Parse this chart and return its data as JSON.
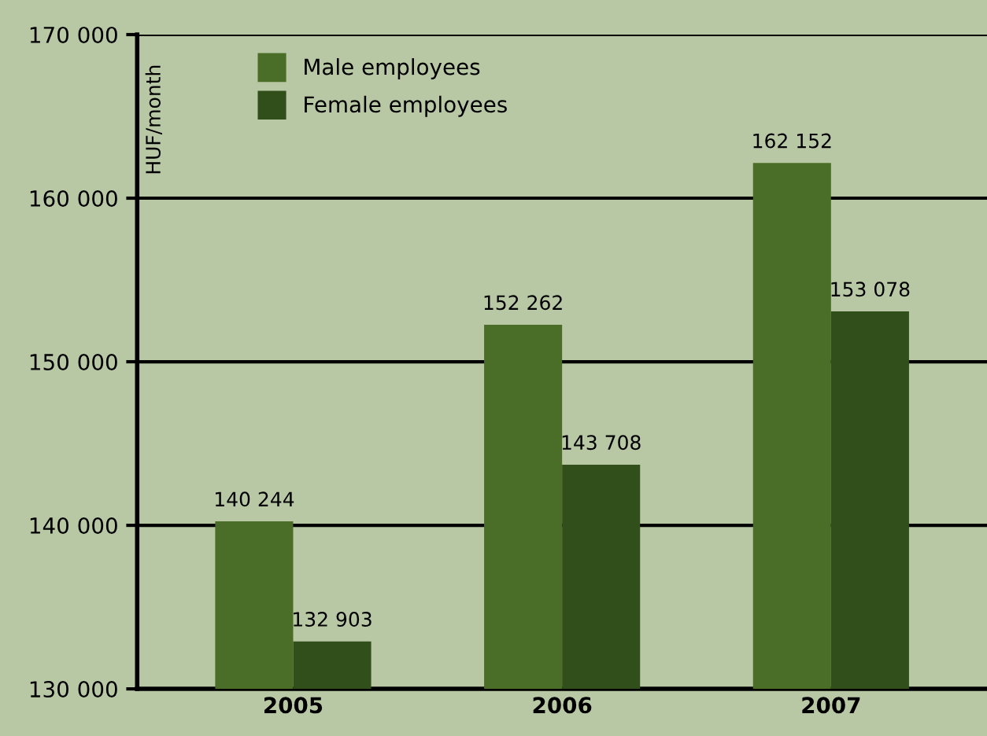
{
  "chart_data": {
    "type": "bar",
    "ylabel": "HUF/month",
    "categories": [
      "2005",
      "2006",
      "2007"
    ],
    "series": [
      {
        "name": "Male employees",
        "color": "#4a6e27",
        "values": [
          140244,
          152262,
          162152
        ],
        "value_labels": [
          "140 244",
          "152 262",
          "162 152"
        ]
      },
      {
        "name": "Female employees",
        "color": "#314f1a",
        "values": [
          132903,
          143708,
          153078
        ],
        "value_labels": [
          "132 903",
          "143 708",
          "153 078"
        ]
      }
    ],
    "ylim": [
      130000,
      170000
    ],
    "yticks": [
      {
        "value": 130000,
        "label": "130 000"
      },
      {
        "value": 140000,
        "label": "140 000"
      },
      {
        "value": 150000,
        "label": "150 000"
      },
      {
        "value": 160000,
        "label": "160 000"
      },
      {
        "value": 170000,
        "label": "170 000"
      }
    ],
    "grid": "y",
    "legend": "top left"
  }
}
